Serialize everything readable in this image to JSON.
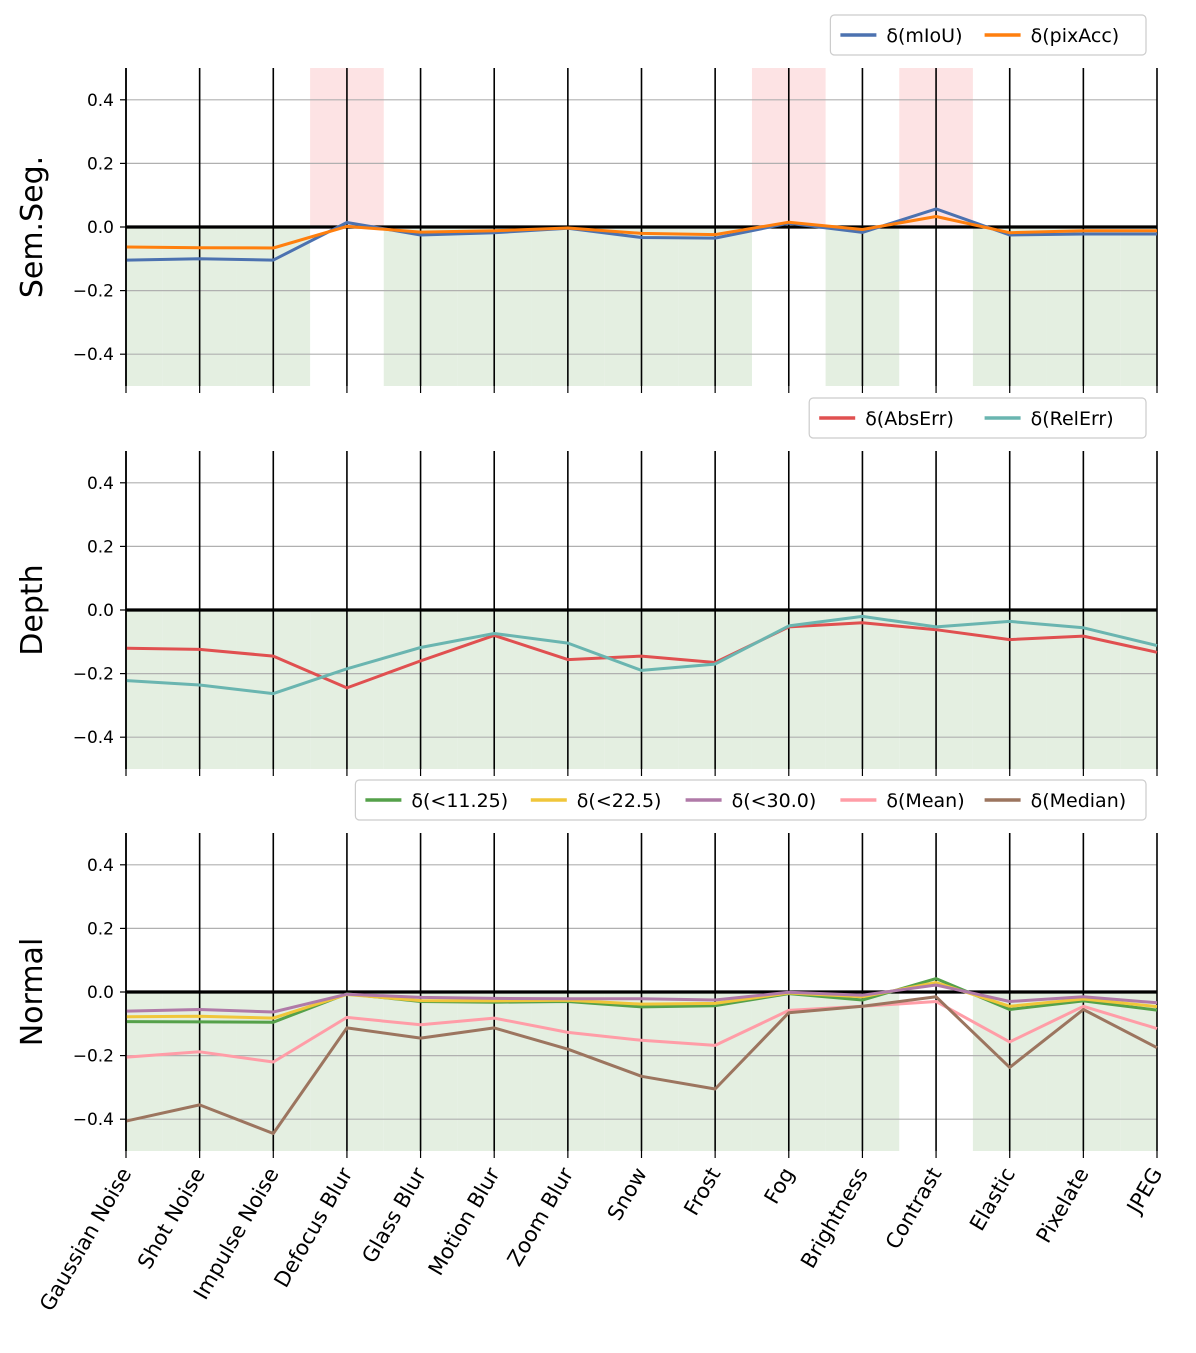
{
  "chart_data": {
    "type": "line",
    "shared_categories": [
      "Gaussian Noise",
      "Shot Noise",
      "Impulse Noise",
      "Defocus Blur",
      "Glass Blur",
      "Motion Blur",
      "Zoom Blur",
      "Snow",
      "Frost",
      "Fog",
      "Brightness",
      "Contrast",
      "Elastic",
      "Pixelate",
      "JPEG"
    ],
    "ytick_labels": [
      "0.4",
      "0.2",
      "0.0",
      "−0.2",
      "−0.4"
    ],
    "ytick_values": [
      0.4,
      0.2,
      0.0,
      -0.2,
      -0.4
    ],
    "ylim": [
      -0.5,
      0.5
    ],
    "grid": true,
    "panels": [
      {
        "ylabel": "Sem.Seg.",
        "legend": {
          "location": "top-right",
          "entries": [
            "δ(mIoU)",
            "δ(pixAcc)"
          ]
        },
        "series": [
          {
            "name": "δ(mIoU)",
            "color": "#4c72b0",
            "values": [
              -0.104,
              -0.1,
              -0.104,
              0.014,
              -0.025,
              -0.018,
              -0.004,
              -0.033,
              -0.035,
              0.012,
              -0.017,
              0.057,
              -0.025,
              -0.022,
              -0.022
            ]
          },
          {
            "name": "δ(pixAcc)",
            "color": "#ff7f0e",
            "values": [
              -0.063,
              -0.065,
              -0.066,
              0.002,
              -0.016,
              -0.012,
              -0.003,
              -0.02,
              -0.024,
              0.015,
              -0.008,
              0.033,
              -0.018,
              -0.012,
              -0.012
            ]
          }
        ],
        "highlights": {
          "red_categories": [
            "Defocus Blur",
            "Fog",
            "Contrast"
          ],
          "green_categories": [
            "Gaussian Noise",
            "Shot Noise",
            "Impulse Noise",
            "Glass Blur",
            "Motion Blur",
            "Zoom Blur",
            "Snow",
            "Frost",
            "Brightness",
            "Elastic",
            "Pixelate",
            "JPEG"
          ]
        }
      },
      {
        "ylabel": "Depth",
        "legend": {
          "location": "top-right",
          "entries": [
            "δ(AbsErr)",
            "δ(RelErr)"
          ]
        },
        "series": [
          {
            "name": "δ(AbsErr)",
            "color": "#e05050",
            "values": [
              -0.12,
              -0.124,
              -0.145,
              -0.245,
              -0.16,
              -0.08,
              -0.156,
              -0.145,
              -0.165,
              -0.053,
              -0.04,
              -0.062,
              -0.093,
              -0.082,
              -0.133
            ]
          },
          {
            "name": "δ(RelErr)",
            "color": "#6ab5b0",
            "values": [
              -0.222,
              -0.236,
              -0.263,
              -0.185,
              -0.118,
              -0.074,
              -0.104,
              -0.19,
              -0.17,
              -0.05,
              -0.02,
              -0.053,
              -0.036,
              -0.056,
              -0.112
            ]
          }
        ],
        "highlights": {
          "red_categories": [],
          "green_categories": [
            "Gaussian Noise",
            "Shot Noise",
            "Impulse Noise",
            "Defocus Blur",
            "Glass Blur",
            "Motion Blur",
            "Zoom Blur",
            "Snow",
            "Frost",
            "Fog",
            "Brightness",
            "Contrast",
            "Elastic",
            "Pixelate",
            "JPEG"
          ]
        }
      },
      {
        "ylabel": "Normal",
        "legend": {
          "location": "top-right",
          "entries": [
            "δ(<11.25)",
            "δ(<22.5)",
            "δ(<30.0)",
            "δ(Mean)",
            "δ(Median)"
          ]
        },
        "series": [
          {
            "name": "δ(<11.25)",
            "color": "#55a14a",
            "values": [
              -0.093,
              -0.094,
              -0.095,
              -0.006,
              -0.03,
              -0.032,
              -0.03,
              -0.047,
              -0.043,
              -0.005,
              -0.025,
              0.042,
              -0.055,
              -0.028,
              -0.057
            ]
          },
          {
            "name": "δ(<22.5)",
            "color": "#f0c63a",
            "values": [
              -0.078,
              -0.076,
              -0.082,
              -0.008,
              -0.027,
              -0.028,
              -0.026,
              -0.038,
              -0.036,
              -0.003,
              -0.015,
              0.03,
              -0.045,
              -0.022,
              -0.046
            ]
          },
          {
            "name": "δ(<30.0)",
            "color": "#b07aa8",
            "values": [
              -0.06,
              -0.055,
              -0.063,
              -0.007,
              -0.017,
              -0.02,
              -0.021,
              -0.021,
              -0.025,
              -0.001,
              -0.01,
              0.022,
              -0.03,
              -0.015,
              -0.034
            ]
          },
          {
            "name": "δ(Mean)",
            "color": "#ff9da7",
            "values": [
              -0.205,
              -0.188,
              -0.22,
              -0.08,
              -0.103,
              -0.082,
              -0.127,
              -0.152,
              -0.168,
              -0.058,
              -0.045,
              -0.03,
              -0.157,
              -0.045,
              -0.115
            ]
          },
          {
            "name": "δ(Median)",
            "color": "#9c755f",
            "values": [
              -0.406,
              -0.355,
              -0.445,
              -0.113,
              -0.145,
              -0.113,
              -0.18,
              -0.265,
              -0.305,
              -0.065,
              -0.045,
              -0.015,
              -0.237,
              -0.055,
              -0.175
            ]
          }
        ],
        "highlights": {
          "red_categories": [],
          "green_categories": [
            "Gaussian Noise",
            "Shot Noise",
            "Impulse Noise",
            "Defocus Blur",
            "Glass Blur",
            "Motion Blur",
            "Zoom Blur",
            "Snow",
            "Frost",
            "Fog",
            "Brightness",
            "Elastic",
            "Pixelate",
            "JPEG"
          ]
        }
      }
    ]
  }
}
